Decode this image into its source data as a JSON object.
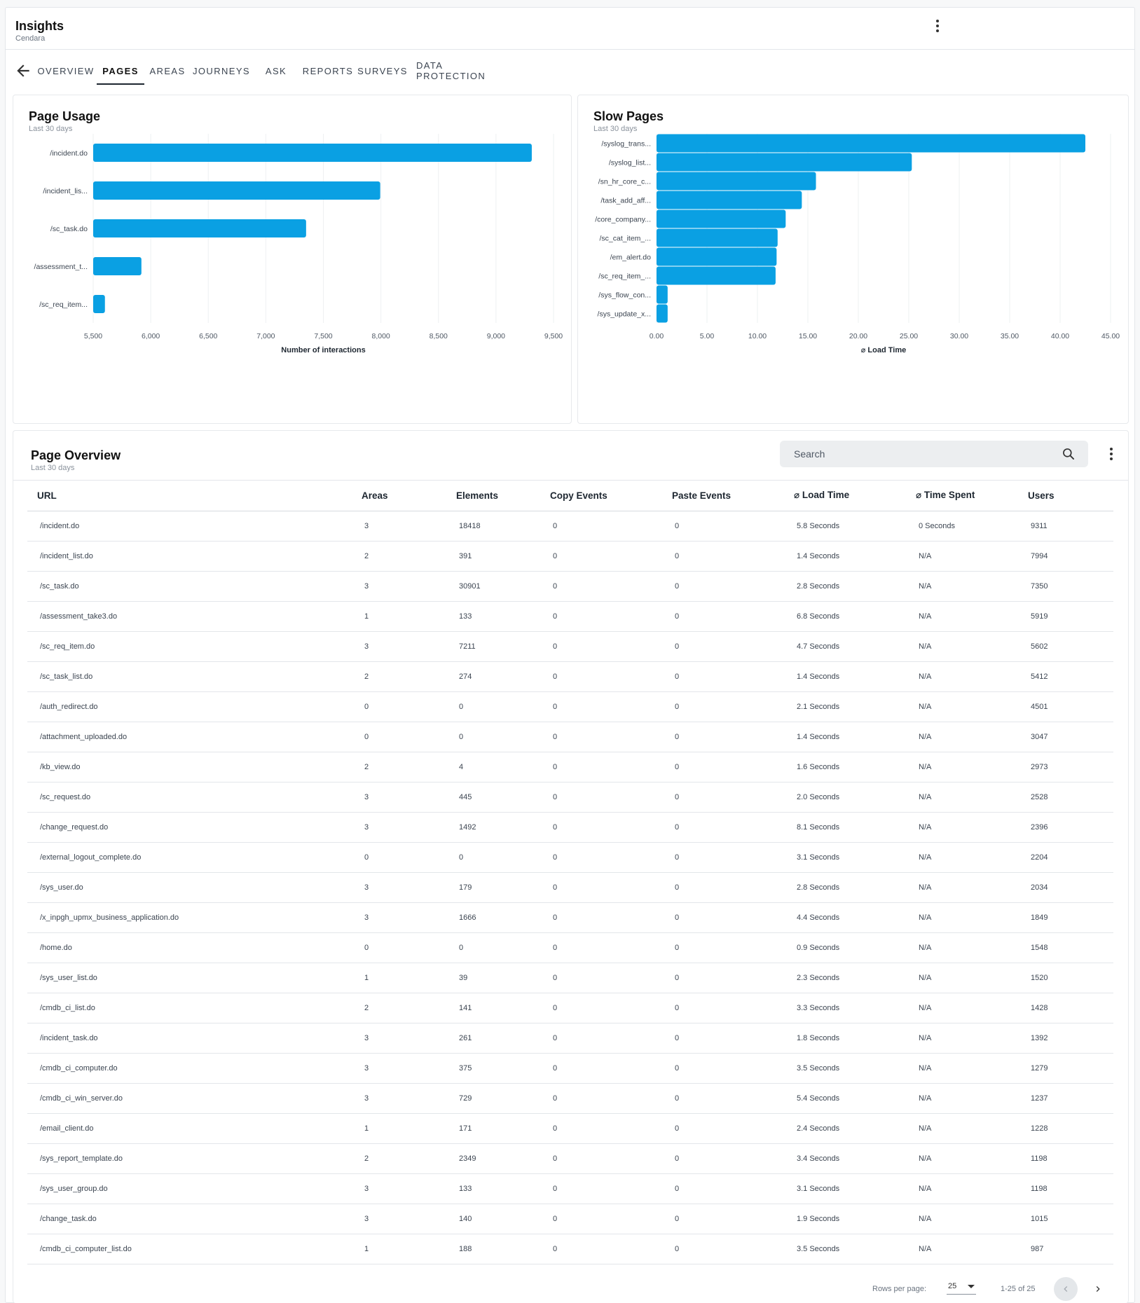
{
  "app": {
    "title": "Insights",
    "subtitle": "Cendara"
  },
  "tabs": [
    {
      "label": "OVERVIEW",
      "active": false
    },
    {
      "label": "PAGES",
      "active": true
    },
    {
      "label": "AREAS",
      "active": false
    },
    {
      "label": "JOURNEYS",
      "active": false
    },
    {
      "label": "ASK",
      "active": false
    },
    {
      "label": "REPORTS",
      "active": false
    },
    {
      "label": "SURVEYS",
      "active": false
    },
    {
      "label": "DATA PROTECTION",
      "active": false
    }
  ],
  "icons": {
    "back": "arrow-left-icon",
    "menu": "more-vertical-icon",
    "search": "search-icon",
    "prev": "chevron-left-icon",
    "next": "chevron-right-icon",
    "dropdown": "caret-down-icon"
  },
  "colors": {
    "bar": "#0aa0e3",
    "accent": "#1d2630"
  },
  "page_usage": {
    "title": "Page Usage",
    "subtitle": "Last 30 days"
  },
  "slow_pages": {
    "title": "Slow Pages",
    "subtitle": "Last 30 days"
  },
  "chart_data": [
    {
      "type": "bar",
      "orientation": "horizontal",
      "title": "Page Usage",
      "subtitle": "Last 30 days",
      "categories": [
        "/incident.do",
        "/incident_lis...",
        "/sc_task.do",
        "/assessment_t...",
        "/sc_req_item..."
      ],
      "values": [
        9311,
        7994,
        7350,
        5919,
        5602
      ],
      "xlabel": "Number of interactions",
      "ylabel": "",
      "xlim": [
        5500,
        9500
      ],
      "xticks": [
        "5,500",
        "6,000",
        "6,500",
        "7,000",
        "7,500",
        "8,000",
        "8,500",
        "9,000",
        "9,500"
      ],
      "xtick_values": [
        5500,
        6000,
        6500,
        7000,
        7500,
        8000,
        8500,
        9000,
        9500
      ],
      "grid": true
    },
    {
      "type": "bar",
      "orientation": "horizontal",
      "title": "Slow Pages",
      "subtitle": "Last 30 days",
      "categories": [
        "/syslog_trans...",
        "/syslog_list...",
        "/sn_hr_core_c...",
        "/task_add_aff...",
        "/core_company...",
        "/sc_cat_item_...",
        "/em_alert.do",
        "/sc_req_item_...",
        "/sys_flow_con...",
        "/sys_update_x..."
      ],
      "values": [
        42.5,
        25.3,
        15.8,
        14.4,
        12.8,
        12.0,
        11.9,
        11.8,
        1.1,
        1.1
      ],
      "xlabel": "⌀ Load Time",
      "ylabel": "",
      "xlim": [
        0,
        45
      ],
      "xticks": [
        "0.00",
        "5.00",
        "10.00",
        "15.00",
        "20.00",
        "25.00",
        "30.00",
        "35.00",
        "40.00",
        "45.00"
      ],
      "xtick_values": [
        0,
        5,
        10,
        15,
        20,
        25,
        30,
        35,
        40,
        45
      ],
      "grid": true
    }
  ],
  "overview": {
    "title": "Page Overview",
    "subtitle": "Last 30 days",
    "search_placeholder": "Search",
    "columns": [
      "URL",
      "Areas",
      "Elements",
      "Copy Events",
      "Paste Events",
      "⌀ Load Time",
      "⌀ Time Spent",
      "Users"
    ],
    "rows": [
      [
        "/incident.do",
        "3",
        "18418",
        "0",
        "0",
        "5.8 Seconds",
        "0 Seconds",
        "9311"
      ],
      [
        "/incident_list.do",
        "2",
        "391",
        "0",
        "0",
        "1.4 Seconds",
        "N/A",
        "7994"
      ],
      [
        "/sc_task.do",
        "3",
        "30901",
        "0",
        "0",
        "2.8 Seconds",
        "N/A",
        "7350"
      ],
      [
        "/assessment_take3.do",
        "1",
        "133",
        "0",
        "0",
        "6.8 Seconds",
        "N/A",
        "5919"
      ],
      [
        "/sc_req_item.do",
        "3",
        "7211",
        "0",
        "0",
        "4.7 Seconds",
        "N/A",
        "5602"
      ],
      [
        "/sc_task_list.do",
        "2",
        "274",
        "0",
        "0",
        "1.4 Seconds",
        "N/A",
        "5412"
      ],
      [
        "/auth_redirect.do",
        "0",
        "0",
        "0",
        "0",
        "2.1 Seconds",
        "N/A",
        "4501"
      ],
      [
        "/attachment_uploaded.do",
        "0",
        "0",
        "0",
        "0",
        "1.4 Seconds",
        "N/A",
        "3047"
      ],
      [
        "/kb_view.do",
        "2",
        "4",
        "0",
        "0",
        "1.6 Seconds",
        "N/A",
        "2973"
      ],
      [
        "/sc_request.do",
        "3",
        "445",
        "0",
        "0",
        "2.0 Seconds",
        "N/A",
        "2528"
      ],
      [
        "/change_request.do",
        "3",
        "1492",
        "0",
        "0",
        "8.1 Seconds",
        "N/A",
        "2396"
      ],
      [
        "/external_logout_complete.do",
        "0",
        "0",
        "0",
        "0",
        "3.1 Seconds",
        "N/A",
        "2204"
      ],
      [
        "/sys_user.do",
        "3",
        "179",
        "0",
        "0",
        "2.8 Seconds",
        "N/A",
        "2034"
      ],
      [
        "/x_inpgh_upmx_business_application.do",
        "3",
        "1666",
        "0",
        "0",
        "4.4 Seconds",
        "N/A",
        "1849"
      ],
      [
        "/home.do",
        "0",
        "0",
        "0",
        "0",
        "0.9 Seconds",
        "N/A",
        "1548"
      ],
      [
        "/sys_user_list.do",
        "1",
        "39",
        "0",
        "0",
        "2.3 Seconds",
        "N/A",
        "1520"
      ],
      [
        "/cmdb_ci_list.do",
        "2",
        "141",
        "0",
        "0",
        "3.3 Seconds",
        "N/A",
        "1428"
      ],
      [
        "/incident_task.do",
        "3",
        "261",
        "0",
        "0",
        "1.8 Seconds",
        "N/A",
        "1392"
      ],
      [
        "/cmdb_ci_computer.do",
        "3",
        "375",
        "0",
        "0",
        "3.5 Seconds",
        "N/A",
        "1279"
      ],
      [
        "/cmdb_ci_win_server.do",
        "3",
        "729",
        "0",
        "0",
        "5.4 Seconds",
        "N/A",
        "1237"
      ],
      [
        "/email_client.do",
        "1",
        "171",
        "0",
        "0",
        "2.4 Seconds",
        "N/A",
        "1228"
      ],
      [
        "/sys_report_template.do",
        "2",
        "2349",
        "0",
        "0",
        "3.4 Seconds",
        "N/A",
        "1198"
      ],
      [
        "/sys_user_group.do",
        "3",
        "133",
        "0",
        "0",
        "3.1 Seconds",
        "N/A",
        "1198"
      ],
      [
        "/change_task.do",
        "3",
        "140",
        "0",
        "0",
        "1.9 Seconds",
        "N/A",
        "1015"
      ],
      [
        "/cmdb_ci_computer_list.do",
        "1",
        "188",
        "0",
        "0",
        "3.5 Seconds",
        "N/A",
        "987"
      ]
    ],
    "pagination": {
      "rows_per_page_label": "Rows per page:",
      "rows_per_page": "25",
      "range": "1-25 of 25"
    }
  }
}
